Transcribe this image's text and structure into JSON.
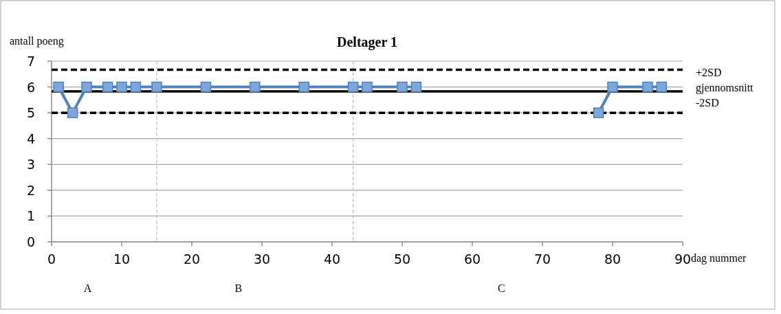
{
  "chart_data": {
    "type": "line",
    "title": "Deltager 1",
    "xlabel": "dag nummer",
    "ylabel": "antall poeng",
    "series": [
      {
        "color": "#4f81bd",
        "x": [
          1,
          3,
          5,
          8,
          10,
          12,
          15,
          22,
          29,
          36,
          43,
          45,
          50,
          52
        ],
        "values": [
          6,
          5,
          6,
          6,
          6,
          6,
          6,
          6,
          6,
          6,
          6,
          6,
          6,
          6
        ]
      },
      {
        "color": "#4f81bd",
        "x": [
          78,
          80,
          85,
          87
        ],
        "values": [
          5,
          6,
          6,
          6
        ]
      }
    ],
    "xlim": [
      0,
      90
    ],
    "xticks": [
      0,
      10,
      20,
      30,
      40,
      50,
      60,
      70,
      80,
      90
    ],
    "ylim": [
      0,
      7
    ],
    "yticks": [
      0,
      1,
      2,
      3,
      4,
      5,
      6,
      7
    ],
    "grid": "y",
    "marker": "square",
    "line_style": "solid",
    "ref_lines": [
      {
        "axis": "y",
        "value": 6.67,
        "label": "+2SD",
        "color": "#000000",
        "line_style": "dashed"
      },
      {
        "axis": "y",
        "value": 5.83,
        "label": "gjennomsnitt",
        "color": "#000000",
        "line_style": "solid"
      },
      {
        "axis": "y",
        "value": 5.0,
        "label": "-2SD",
        "color": "#000000",
        "line_style": "dashed"
      },
      {
        "axis": "x",
        "value": 15,
        "color": "#bfbfbf",
        "line_style": "dashed"
      },
      {
        "axis": "x",
        "value": 43,
        "color": "#bfbfbf",
        "line_style": "dashed"
      }
    ],
    "annotations": [
      "A",
      "B",
      "C"
    ]
  }
}
